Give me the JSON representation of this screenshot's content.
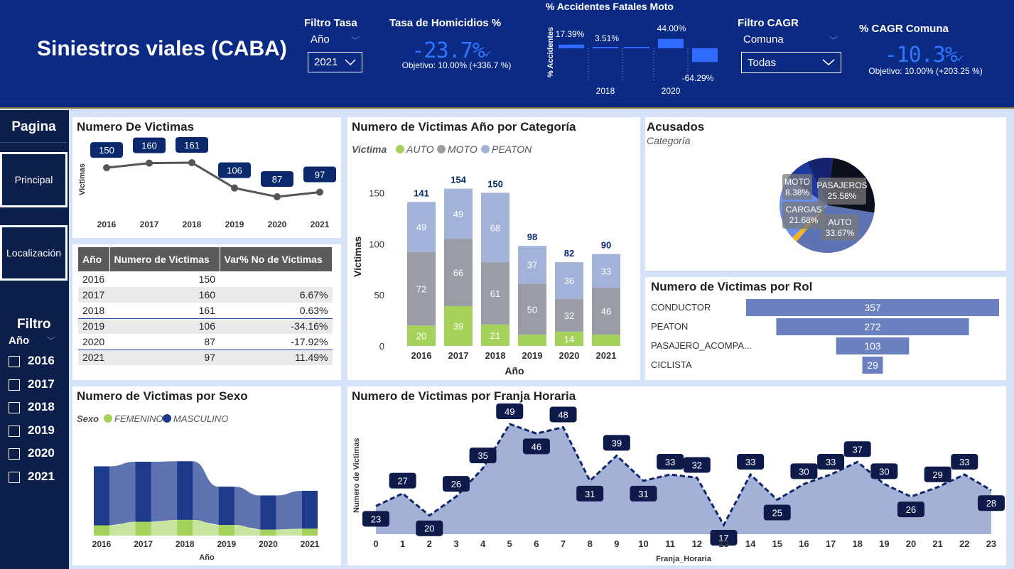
{
  "header": {
    "title": "Siniestros viales (CABA)",
    "filtro_tasa": {
      "label": "Filtro Tasa",
      "sublabel": "Año",
      "selected": "2021"
    },
    "kpi_homicidios": {
      "label": "Tasa de Homicidios %",
      "value": "-23.7%",
      "objetivo": "Objetivo: 10.00% (+336.7 %)"
    },
    "accidentes_moto": {
      "label": "% Accidentes Fatales Moto",
      "ylabel": "% Accidentes"
    },
    "filtro_cagr": {
      "label": "Filtro CAGR",
      "sublabel": "Comuna",
      "selected": "Todas"
    },
    "kpi_cagr": {
      "label": "% CAGR Comuna",
      "value": "-10.3%",
      "objetivo": "Objetivo: 10.00% (+203.25 %)"
    }
  },
  "sidebar": {
    "pagina_label": "Pagina",
    "nav": [
      {
        "label": "Principal"
      },
      {
        "label": "Localización"
      }
    ],
    "filtro_label": "Filtro",
    "anio_label": "Año",
    "years": [
      "2016",
      "2017",
      "2018",
      "2019",
      "2020",
      "2021"
    ]
  },
  "tabla": {
    "headers": [
      "Año",
      "Numero de Victimas",
      "Var% No de Victimas"
    ],
    "rows": [
      [
        "2016",
        "150",
        ""
      ],
      [
        "2017",
        "160",
        "6.67%"
      ],
      [
        "2018",
        "161",
        "0.63%"
      ],
      [
        "2019",
        "106",
        "-34.16%"
      ],
      [
        "2020",
        "87",
        "-17.92%"
      ],
      [
        "2021",
        "97",
        "11.49%"
      ]
    ]
  },
  "chart_data": [
    {
      "id": "victimas_linea",
      "type": "line",
      "title": "Numero De Victimas",
      "ylabel": "Victimas",
      "categories": [
        "2016",
        "2017",
        "2018",
        "2019",
        "2020",
        "2021"
      ],
      "values": [
        150,
        160,
        161,
        106,
        87,
        97
      ]
    },
    {
      "id": "victimas_categoria",
      "type": "bar",
      "stacked": true,
      "title": "Numero de Victimas Año por Categoría",
      "legend_title": "Victima",
      "xlabel": "Año",
      "ylabel": "Victimas",
      "ylim": [
        0,
        160
      ],
      "yticks": [
        0,
        50,
        100,
        150
      ],
      "categories": [
        "2016",
        "2017",
        "2018",
        "2019",
        "2020",
        "2021"
      ],
      "series": [
        {
          "name": "AUTO",
          "color": "#a5d25a",
          "values": [
            20,
            39,
            21,
            11,
            14,
            11
          ],
          "labels": [
            "20",
            "39",
            "21",
            "",
            "14",
            ""
          ]
        },
        {
          "name": "MOTO",
          "color": "#9a9da5",
          "values": [
            72,
            66,
            61,
            50,
            32,
            46
          ],
          "labels": [
            "72",
            "66",
            "61",
            "50",
            "32",
            "46"
          ]
        },
        {
          "name": "PEATON",
          "color": "#a2b2d8",
          "values": [
            49,
            49,
            68,
            37,
            36,
            33
          ],
          "labels": [
            "49",
            "49",
            "68",
            "37",
            "36",
            "33"
          ]
        }
      ],
      "totals": [
        141,
        154,
        150,
        98,
        82,
        90
      ]
    },
    {
      "id": "acusados",
      "type": "pie",
      "title": "Acusados",
      "subtitle": "Categoría",
      "slices": [
        {
          "label": "PASAJEROS",
          "value": 25.58,
          "color": "#0c0f1c"
        },
        {
          "label": "AUTO",
          "value": 33.67,
          "color": "#5e73b3"
        },
        {
          "label": "",
          "value": 2.0,
          "color": "#f0b429"
        },
        {
          "label": "CARGAS",
          "value": 21.68,
          "color": "#6e8fe8"
        },
        {
          "label": "MOTO",
          "value": 8.38,
          "color": "#1f3a9e"
        },
        {
          "label": "",
          "value": 8.69,
          "color": "#13236e"
        }
      ],
      "slice_labels": [
        {
          "name": "PASAJEROS",
          "pct": "25.58%"
        },
        {
          "name": "AUTO",
          "pct": "33.67%"
        },
        {
          "name": "CARGAS",
          "pct": "21.68%"
        },
        {
          "name": "MOTO",
          "pct": "8.38%"
        }
      ]
    },
    {
      "id": "victimas_rol",
      "type": "bar",
      "orientation": "horizontal",
      "title": "Numero de Victimas por Rol",
      "categories": [
        "CONDUCTOR",
        "PEATON",
        "PASAJERO_ACOMPA...",
        "CICLISTA"
      ],
      "values": [
        357,
        272,
        103,
        29
      ]
    },
    {
      "id": "victimas_sexo",
      "type": "area",
      "stacked": true,
      "title": "Numero de Victimas por Sexo",
      "legend_title": "Sexo",
      "xlabel": "Año",
      "categories": [
        "2016",
        "2017",
        "2018",
        "2019",
        "2020",
        "2021"
      ],
      "series": [
        {
          "name": "FEMENINO",
          "color": "#a5d25a",
          "values": [
            22,
            30,
            34,
            23,
            13,
            15
          ]
        },
        {
          "name": "MASCULINO",
          "color": "#1e3a8a",
          "values": [
            128,
            130,
            127,
            83,
            74,
            82
          ]
        }
      ]
    },
    {
      "id": "franja_horaria",
      "type": "area",
      "title": "Numero de Victimas por Franja Horaria",
      "xlabel": "Franja_Horaria",
      "ylabel": "Numero de Victimas",
      "x": [
        0,
        1,
        2,
        3,
        4,
        5,
        6,
        7,
        8,
        9,
        10,
        11,
        12,
        13,
        14,
        15,
        16,
        17,
        18,
        19,
        20,
        21,
        22,
        23
      ],
      "values": [
        23,
        27,
        20,
        26,
        35,
        49,
        46,
        48,
        31,
        39,
        31,
        33,
        32,
        17,
        33,
        25,
        30,
        33,
        37,
        30,
        26,
        29,
        33,
        28
      ]
    },
    {
      "id": "accidentes_moto",
      "type": "bar",
      "title": "% Accidentes Fatales Moto",
      "ylabel": "% Accidentes",
      "xtick_labels": [
        "2018",
        "2020"
      ],
      "values": [
        17.39,
        3.51,
        0,
        44.0,
        -64.29
      ],
      "value_labels": [
        "17.39%",
        "3.51%",
        "",
        "44.00%",
        "-64.29%"
      ]
    }
  ]
}
